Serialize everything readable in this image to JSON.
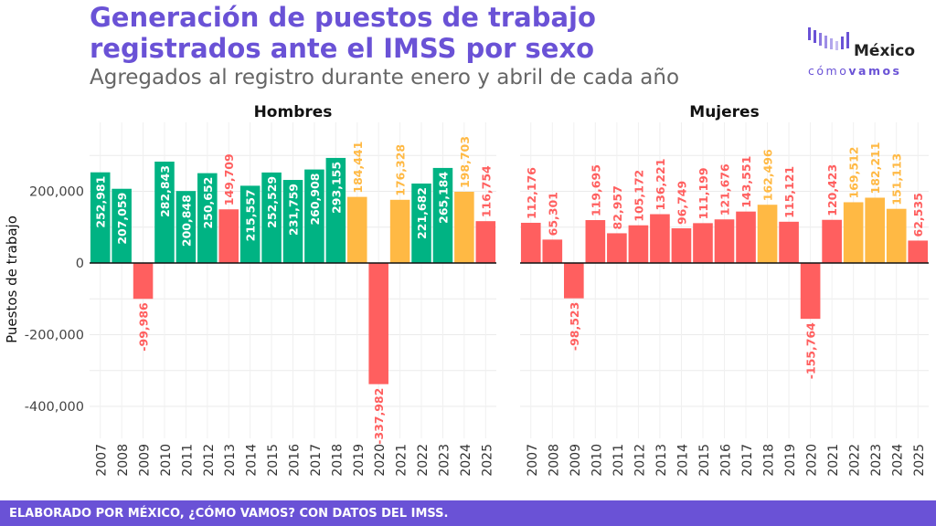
{
  "header": {
    "title_line1": "Generación de puestos de trabajo",
    "title_line2": "registrados ante el IMSS por sexo",
    "subtitle": "Agregados al registro durante enero y abril de cada año"
  },
  "logo": {
    "brand_top": "México",
    "brand_bottom_a": "cómo",
    "brand_bottom_b": "vamos"
  },
  "footer": {
    "source": "ELABORADO POR MÉXICO, ¿CÓMO VAMOS? CON DATOS DEL IMSS."
  },
  "colors": {
    "green": "#00b383",
    "yellow": "#ffb944",
    "red": "#ff5f5f",
    "purple": "#6a52d6"
  },
  "chart_data": [
    {
      "type": "bar",
      "title": "Hombres",
      "ylabel": "Puestos de trabajo",
      "ylim": [
        -480000,
        390000
      ],
      "yticks": [
        200000,
        0,
        -200000,
        -400000
      ],
      "ytick_labels": [
        "200,000",
        "0",
        "-200,000",
        "-400,000"
      ],
      "categories": [
        "2007",
        "2008",
        "2009",
        "2010",
        "2011",
        "2012",
        "2013",
        "2014",
        "2015",
        "2016",
        "2017",
        "2018",
        "2019",
        "2020",
        "2021",
        "2022",
        "2023",
        "2024",
        "2025"
      ],
      "values": [
        252981,
        207059,
        -99986,
        282843,
        200848,
        250652,
        149709,
        215557,
        252529,
        231759,
        260908,
        293155,
        184441,
        -337982,
        176328,
        221682,
        265184,
        198703,
        116754
      ],
      "labels": [
        "252,981",
        "207,059",
        "-99,986",
        "282,843",
        "200,848",
        "250,652",
        "149,709",
        "215,557",
        "252,529",
        "231,759",
        "260,908",
        "293,155",
        "184,441",
        "-337,982",
        "176,328",
        "221,682",
        "265,184",
        "198,703",
        "116,754"
      ],
      "colors": [
        "green",
        "green",
        "red",
        "green",
        "green",
        "green",
        "red",
        "green",
        "green",
        "green",
        "green",
        "green",
        "yellow",
        "red",
        "yellow",
        "green",
        "green",
        "yellow",
        "red"
      ]
    },
    {
      "type": "bar",
      "title": "Mujeres",
      "ylim": [
        -480000,
        390000
      ],
      "categories": [
        "2007",
        "2008",
        "2009",
        "2010",
        "2011",
        "2012",
        "2013",
        "2014",
        "2015",
        "2016",
        "2017",
        "2018",
        "2019",
        "2020",
        "2021",
        "2022",
        "2023",
        "2024",
        "2025"
      ],
      "values": [
        112176,
        65301,
        -98523,
        119695,
        82957,
        105172,
        136221,
        96749,
        111199,
        121676,
        143551,
        162496,
        115121,
        -155764,
        120423,
        169512,
        182211,
        151113,
        62535
      ],
      "labels": [
        "112,176",
        "65,301",
        "-98,523",
        "119,695",
        "82,957",
        "105,172",
        "136,221",
        "96,749",
        "111,199",
        "121,676",
        "143,551",
        "162,496",
        "115,121",
        "-155,764",
        "120,423",
        "169,512",
        "182,211",
        "151,113",
        "62,535"
      ],
      "colors": [
        "red",
        "red",
        "red",
        "red",
        "red",
        "red",
        "red",
        "red",
        "red",
        "red",
        "red",
        "yellow",
        "red",
        "red",
        "red",
        "yellow",
        "yellow",
        "yellow",
        "red"
      ]
    }
  ]
}
